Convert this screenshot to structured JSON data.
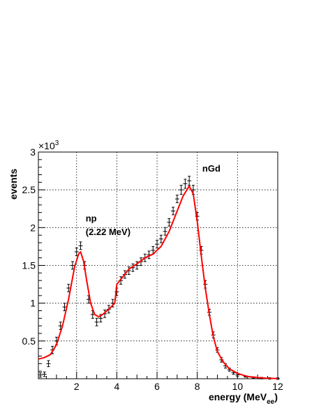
{
  "chart_data": {
    "type": "line",
    "xlabel": "energy (MeV",
    "xlabel_sub": "ee",
    "xlabel_close": ")",
    "ylabel": "events",
    "y_multiplier_base": "×10",
    "y_multiplier_exp": "3",
    "xlim": [
      0.1,
      12
    ],
    "ylim": [
      0,
      3
    ],
    "x_ticks": [
      2,
      4,
      6,
      8,
      10,
      12
    ],
    "y_ticks": [
      0.5,
      1,
      1.5,
      2,
      2.5,
      3
    ],
    "x_tick_labels": [
      "2",
      "4",
      "6",
      "8",
      "10",
      "12"
    ],
    "y_tick_labels": [
      "0.5",
      "1",
      "1.5",
      "2",
      "2.5",
      "3"
    ],
    "grid": true,
    "colors": {
      "data": "#000000",
      "mc": "#ff0000"
    },
    "annotations": [
      {
        "text": "np",
        "x": 2.45,
        "y": 2.08
      },
      {
        "text": "(2.22 MeV)",
        "x": 2.45,
        "y": 1.9
      },
      {
        "text": "nGd",
        "x": 8.25,
        "y": 2.74
      }
    ],
    "series": [
      {
        "style": "points-with-errorbars",
        "x": [
          0.2,
          0.4,
          0.6,
          0.8,
          1.0,
          1.2,
          1.4,
          1.6,
          1.8,
          2.0,
          2.2,
          2.4,
          2.6,
          2.8,
          3.0,
          3.2,
          3.4,
          3.6,
          3.8,
          4.0,
          4.2,
          4.4,
          4.6,
          4.8,
          5.0,
          5.2,
          5.4,
          5.6,
          5.8,
          6.0,
          6.2,
          6.4,
          6.6,
          6.8,
          7.0,
          7.2,
          7.4,
          7.6,
          7.8,
          8.0,
          8.2,
          8.4,
          8.6,
          8.8,
          9.0,
          9.2,
          9.4,
          9.6,
          9.8,
          10.0,
          10.4,
          10.8,
          11.2,
          11.6,
          12.0
        ],
        "y": [
          0.05,
          0.06,
          0.2,
          0.38,
          0.5,
          0.7,
          0.95,
          1.2,
          1.5,
          1.68,
          1.76,
          1.5,
          1.05,
          0.85,
          0.75,
          0.8,
          0.86,
          0.92,
          1.0,
          1.15,
          1.3,
          1.38,
          1.43,
          1.47,
          1.5,
          1.55,
          1.6,
          1.64,
          1.7,
          1.78,
          1.85,
          1.95,
          2.07,
          2.22,
          2.38,
          2.5,
          2.58,
          2.62,
          2.5,
          2.15,
          1.7,
          1.25,
          0.88,
          0.58,
          0.38,
          0.25,
          0.17,
          0.12,
          0.08,
          0.05,
          0.03,
          0.015,
          0.008,
          0.004,
          0.002
        ],
        "err": [
          0.03,
          0.03,
          0.04,
          0.05,
          0.05,
          0.05,
          0.05,
          0.05,
          0.05,
          0.05,
          0.05,
          0.05,
          0.05,
          0.05,
          0.05,
          0.05,
          0.05,
          0.05,
          0.05,
          0.05,
          0.05,
          0.05,
          0.05,
          0.05,
          0.05,
          0.05,
          0.05,
          0.05,
          0.05,
          0.05,
          0.05,
          0.05,
          0.05,
          0.05,
          0.05,
          0.06,
          0.06,
          0.06,
          0.06,
          0.05,
          0.05,
          0.05,
          0.04,
          0.04,
          0.03,
          0.03,
          0.03,
          0.02,
          0.02,
          0.02,
          0.01,
          0.01,
          0.01,
          0.01,
          0.01
        ]
      },
      {
        "style": "line",
        "x": [
          0.1,
          0.4,
          0.7,
          1.0,
          1.3,
          1.6,
          1.9,
          2.1,
          2.2,
          2.35,
          2.5,
          2.7,
          2.9,
          3.1,
          3.3,
          3.6,
          3.9,
          4.0,
          4.3,
          4.6,
          5.0,
          5.4,
          5.8,
          6.2,
          6.6,
          7.0,
          7.3,
          7.6,
          7.8,
          8.0,
          8.2,
          8.4,
          8.6,
          8.8,
          9.0,
          9.3,
          9.6,
          10.0,
          10.5,
          11.0,
          11.5,
          12.0
        ],
        "y": [
          0.26,
          0.28,
          0.32,
          0.45,
          0.7,
          1.05,
          1.48,
          1.65,
          1.68,
          1.55,
          1.3,
          1.0,
          0.85,
          0.82,
          0.85,
          0.92,
          1.0,
          1.25,
          1.35,
          1.45,
          1.52,
          1.6,
          1.65,
          1.75,
          1.95,
          2.22,
          2.42,
          2.55,
          2.45,
          2.08,
          1.62,
          1.2,
          0.85,
          0.55,
          0.36,
          0.22,
          0.13,
          0.07,
          0.03,
          0.015,
          0.006,
          0.002
        ]
      }
    ]
  }
}
